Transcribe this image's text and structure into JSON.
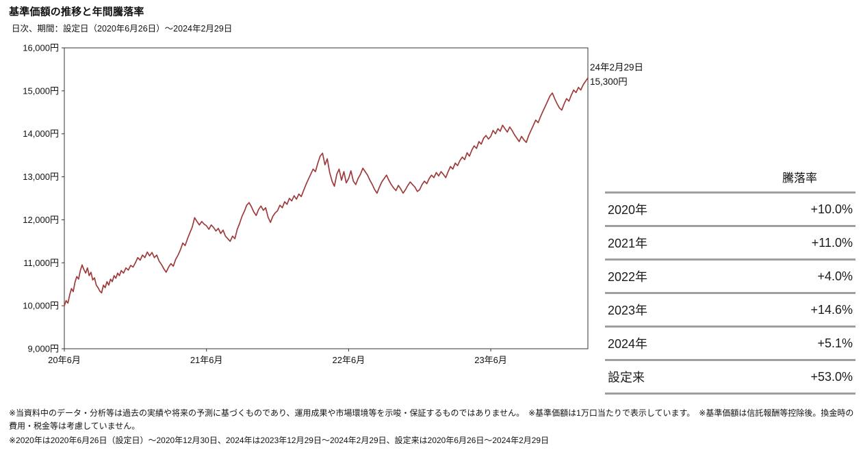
{
  "header": {
    "title": "基準価額の推移と年間騰落率",
    "subtitle": "日次、期間：設定日（2020年6月26日）～2024年2月29日"
  },
  "chart_data": {
    "type": "line",
    "title": "基準価額の推移と年間騰落率",
    "series_name": "基準価額",
    "x_unit": "経過月数（2020年6月起点）",
    "xlim": [
      0,
      44.2
    ],
    "ylim": [
      9000,
      16000
    ],
    "grid": false,
    "legend": "none",
    "line_color": "#9e3a3a",
    "frame_color": "#333333",
    "x_ticks": [
      {
        "m": 0,
        "label": "20年6月"
      },
      {
        "m": 12,
        "label": "21年6月"
      },
      {
        "m": 24,
        "label": "22年6月"
      },
      {
        "m": 36,
        "label": "23年6月"
      }
    ],
    "y_ticks": [
      {
        "v": 16000,
        "label": "16,000円"
      },
      {
        "v": 15000,
        "label": "15,000円"
      },
      {
        "v": 14000,
        "label": "14,000円"
      },
      {
        "v": 13000,
        "label": "13,000円"
      },
      {
        "v": 12000,
        "label": "12,000円"
      },
      {
        "v": 11000,
        "label": "11,000円"
      },
      {
        "v": 10000,
        "label": "10,000円"
      },
      {
        "v": 9000,
        "label": "9,000円"
      }
    ],
    "annotation": {
      "line1": "24年2月29日",
      "line2": "15,300円"
    },
    "points": [
      [
        0,
        10000
      ],
      [
        0.15,
        10120
      ],
      [
        0.3,
        10060
      ],
      [
        0.45,
        10250
      ],
      [
        0.6,
        10400
      ],
      [
        0.75,
        10330
      ],
      [
        0.9,
        10550
      ],
      [
        1.05,
        10680
      ],
      [
        1.2,
        10620
      ],
      [
        1.35,
        10820
      ],
      [
        1.5,
        10950
      ],
      [
        1.65,
        10840
      ],
      [
        1.8,
        10760
      ],
      [
        1.95,
        10880
      ],
      [
        2.1,
        10700
      ],
      [
        2.25,
        10780
      ],
      [
        2.4,
        10600
      ],
      [
        2.55,
        10650
      ],
      [
        2.7,
        10480
      ],
      [
        2.85,
        10420
      ],
      [
        3,
        10340
      ],
      [
        3.15,
        10300
      ],
      [
        3.3,
        10480
      ],
      [
        3.45,
        10420
      ],
      [
        3.6,
        10560
      ],
      [
        3.75,
        10480
      ],
      [
        3.9,
        10620
      ],
      [
        4.05,
        10560
      ],
      [
        4.2,
        10700
      ],
      [
        4.35,
        10640
      ],
      [
        4.5,
        10760
      ],
      [
        4.65,
        10700
      ],
      [
        4.8,
        10820
      ],
      [
        5,
        10760
      ],
      [
        5.2,
        10880
      ],
      [
        5.4,
        10830
      ],
      [
        5.6,
        10940
      ],
      [
        5.8,
        10900
      ],
      [
        6,
        11000
      ],
      [
        6.2,
        11120
      ],
      [
        6.4,
        11060
      ],
      [
        6.6,
        11180
      ],
      [
        6.8,
        11120
      ],
      [
        7,
        11250
      ],
      [
        7.2,
        11160
      ],
      [
        7.4,
        11240
      ],
      [
        7.6,
        11120
      ],
      [
        7.8,
        11180
      ],
      [
        8,
        11040
      ],
      [
        8.2,
        10960
      ],
      [
        8.4,
        10860
      ],
      [
        8.6,
        10780
      ],
      [
        8.8,
        10900
      ],
      [
        9,
        10980
      ],
      [
        9.2,
        10920
      ],
      [
        9.4,
        11080
      ],
      [
        9.6,
        11180
      ],
      [
        9.8,
        11300
      ],
      [
        10,
        11460
      ],
      [
        10.2,
        11400
      ],
      [
        10.4,
        11560
      ],
      [
        10.6,
        11700
      ],
      [
        10.8,
        11830
      ],
      [
        11,
        12050
      ],
      [
        11.2,
        11960
      ],
      [
        11.4,
        11880
      ],
      [
        11.6,
        11960
      ],
      [
        11.8,
        11900
      ],
      [
        12,
        11860
      ],
      [
        12.2,
        11780
      ],
      [
        12.4,
        11880
      ],
      [
        12.6,
        11820
      ],
      [
        12.8,
        11740
      ],
      [
        13,
        11800
      ],
      [
        13.2,
        11680
      ],
      [
        13.4,
        11760
      ],
      [
        13.6,
        11620
      ],
      [
        13.8,
        11560
      ],
      [
        14,
        11500
      ],
      [
        14.2,
        11620
      ],
      [
        14.4,
        11560
      ],
      [
        14.6,
        11780
      ],
      [
        14.8,
        11920
      ],
      [
        15,
        12080
      ],
      [
        15.2,
        12200
      ],
      [
        15.4,
        12340
      ],
      [
        15.6,
        12400
      ],
      [
        15.8,
        12300
      ],
      [
        16,
        12180
      ],
      [
        16.2,
        12100
      ],
      [
        16.4,
        12240
      ],
      [
        16.6,
        12320
      ],
      [
        16.8,
        12220
      ],
      [
        17,
        12280
      ],
      [
        17.2,
        12060
      ],
      [
        17.4,
        11940
      ],
      [
        17.6,
        12080
      ],
      [
        17.8,
        12160
      ],
      [
        18,
        12210
      ],
      [
        18.2,
        12340
      ],
      [
        18.4,
        12280
      ],
      [
        18.6,
        12420
      ],
      [
        18.8,
        12360
      ],
      [
        19,
        12500
      ],
      [
        19.2,
        12440
      ],
      [
        19.4,
        12560
      ],
      [
        19.6,
        12480
      ],
      [
        19.8,
        12600
      ],
      [
        20,
        12540
      ],
      [
        20.2,
        12680
      ],
      [
        20.4,
        12820
      ],
      [
        20.6,
        12940
      ],
      [
        20.8,
        13060
      ],
      [
        21,
        13180
      ],
      [
        21.2,
        13120
      ],
      [
        21.4,
        13320
      ],
      [
        21.6,
        13480
      ],
      [
        21.8,
        13550
      ],
      [
        22,
        13280
      ],
      [
        22.2,
        13420
      ],
      [
        22.4,
        13100
      ],
      [
        22.6,
        12900
      ],
      [
        22.8,
        12780
      ],
      [
        23,
        13060
      ],
      [
        23.2,
        13180
      ],
      [
        23.4,
        12920
      ],
      [
        23.6,
        13120
      ],
      [
        23.8,
        12860
      ],
      [
        24,
        12960
      ],
      [
        24.2,
        13140
      ],
      [
        24.4,
        12900
      ],
      [
        24.6,
        12820
      ],
      [
        24.8,
        12960
      ],
      [
        25,
        13060
      ],
      [
        25.2,
        13200
      ],
      [
        25.4,
        13120
      ],
      [
        25.6,
        13040
      ],
      [
        25.8,
        12920
      ],
      [
        26,
        12820
      ],
      [
        26.2,
        12700
      ],
      [
        26.4,
        12620
      ],
      [
        26.6,
        12760
      ],
      [
        26.8,
        12880
      ],
      [
        27,
        12960
      ],
      [
        27.2,
        13040
      ],
      [
        27.4,
        12920
      ],
      [
        27.6,
        12820
      ],
      [
        27.8,
        12740
      ],
      [
        28,
        12680
      ],
      [
        28.2,
        12800
      ],
      [
        28.4,
        12720
      ],
      [
        28.6,
        12620
      ],
      [
        28.8,
        12700
      ],
      [
        29,
        12800
      ],
      [
        29.2,
        12880
      ],
      [
        29.4,
        12820
      ],
      [
        29.6,
        12760
      ],
      [
        29.8,
        12660
      ],
      [
        30,
        12700
      ],
      [
        30.2,
        12820
      ],
      [
        30.4,
        12900
      ],
      [
        30.6,
        12840
      ],
      [
        30.8,
        12960
      ],
      [
        31,
        13040
      ],
      [
        31.2,
        12980
      ],
      [
        31.4,
        13100
      ],
      [
        31.6,
        13020
      ],
      [
        31.8,
        13120
      ],
      [
        32,
        13060
      ],
      [
        32.2,
        12980
      ],
      [
        32.4,
        13120
      ],
      [
        32.6,
        13240
      ],
      [
        32.8,
        13180
      ],
      [
        33,
        13320
      ],
      [
        33.2,
        13260
      ],
      [
        33.4,
        13380
      ],
      [
        33.6,
        13460
      ],
      [
        33.8,
        13400
      ],
      [
        34,
        13560
      ],
      [
        34.2,
        13480
      ],
      [
        34.4,
        13620
      ],
      [
        34.6,
        13720
      ],
      [
        34.8,
        13660
      ],
      [
        35,
        13820
      ],
      [
        35.2,
        13760
      ],
      [
        35.4,
        13900
      ],
      [
        35.6,
        13960
      ],
      [
        35.8,
        13880
      ],
      [
        36,
        13940
      ],
      [
        36.2,
        14080
      ],
      [
        36.4,
        14000
      ],
      [
        36.6,
        14120
      ],
      [
        36.8,
        14060
      ],
      [
        37,
        14200
      ],
      [
        37.2,
        14120
      ],
      [
        37.4,
        14040
      ],
      [
        37.6,
        14160
      ],
      [
        37.8,
        14080
      ],
      [
        38,
        13980
      ],
      [
        38.2,
        13900
      ],
      [
        38.4,
        13820
      ],
      [
        38.6,
        13940
      ],
      [
        38.8,
        13860
      ],
      [
        39,
        13800
      ],
      [
        39.2,
        13960
      ],
      [
        39.4,
        14080
      ],
      [
        39.6,
        14200
      ],
      [
        39.8,
        14320
      ],
      [
        40,
        14260
      ],
      [
        40.2,
        14400
      ],
      [
        40.4,
        14520
      ],
      [
        40.6,
        14640
      ],
      [
        40.8,
        14760
      ],
      [
        41,
        14880
      ],
      [
        41.2,
        14950
      ],
      [
        41.4,
        14820
      ],
      [
        41.6,
        14700
      ],
      [
        41.8,
        14600
      ],
      [
        42,
        14552
      ],
      [
        42.2,
        14700
      ],
      [
        42.4,
        14820
      ],
      [
        42.6,
        14760
      ],
      [
        42.8,
        14900
      ],
      [
        43,
        15020
      ],
      [
        43.2,
        14960
      ],
      [
        43.4,
        15080
      ],
      [
        43.6,
        15020
      ],
      [
        43.8,
        15140
      ],
      [
        44,
        15220
      ],
      [
        44.2,
        15300
      ]
    ]
  },
  "table": {
    "header": "騰落率",
    "rows": [
      {
        "label": "2020年",
        "value": "+10.0%"
      },
      {
        "label": "2021年",
        "value": "+11.0%"
      },
      {
        "label": "2022年",
        "value": "+4.0%"
      },
      {
        "label": "2023年",
        "value": "+14.6%"
      },
      {
        "label": "2024年",
        "value": "+5.1%"
      },
      {
        "label": "設定来",
        "value": "+53.0%"
      }
    ]
  },
  "footnotes": [
    "※当資料中のデータ・分析等は過去の実績や将来の予測に基づくものであり、運用成果や市場環境等を示唆・保証するものではありません。　※基準価額は1万口当たりで表示しています。　※基準価額は信託報酬等控除後。換金時の費用・税金等は考慮していません。",
    "※2020年は2020年6月26日（設定日）～2020年12月30日、2024年は2023年12月29日～2024年2月29日、設定来は2020年6月26日～2024年2月29日"
  ]
}
